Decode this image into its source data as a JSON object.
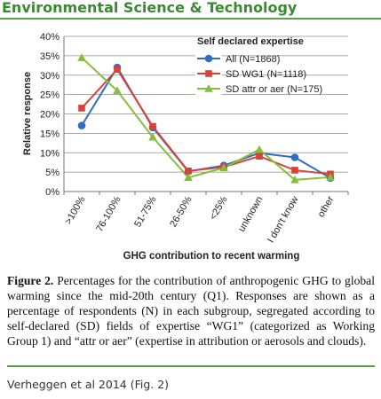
{
  "header": {
    "title": "Environmental Science & Technology"
  },
  "chart_data": {
    "type": "line",
    "ylabel": "Relative response",
    "xlabel": "GHG contribution to recent warming",
    "legend_title": "Self declared expertise",
    "legend_position": "top-right",
    "categories": [
      ">100%",
      "76-100%",
      "51-75%",
      "26-50%",
      "<25%",
      "unknown",
      "I don't know",
      "other"
    ],
    "yticks": [
      "0%",
      "5%",
      "10%",
      "15%",
      "20%",
      "25%",
      "30%",
      "35%",
      "40%"
    ],
    "ylim": [
      0,
      40
    ],
    "grid": true,
    "series": [
      {
        "name": "All (N=1868)",
        "color": "#2e6fc4",
        "marker": "circle",
        "values": [
          17,
          32,
          16.5,
          5.2,
          6.7,
          9.9,
          8.8,
          3.5
        ]
      },
      {
        "name": "SD WG1 (N=1118)",
        "color": "#d9413a",
        "marker": "square",
        "values": [
          21.5,
          31.5,
          16.8,
          5.3,
          6.3,
          9.1,
          5.5,
          4.5
        ]
      },
      {
        "name": "SD attr or aer (N=175)",
        "color": "#86bd3c",
        "marker": "triangle",
        "values": [
          34.5,
          26,
          14,
          3.6,
          6.1,
          10.8,
          3,
          3.7
        ]
      }
    ]
  },
  "caption": {
    "label": "Figure 2.",
    "text": " Percentages for the contribution of anthropogenic GHG to global warming since the mid-20th century (Q1). Responses are shown as a percentage of respondents (N) in each subgroup, segregated according to self-declared (SD) fields of expertise “WG1” (categorized as Working Group 1) and “attr or aer” (expertise in attribution or aerosols and clouds)."
  },
  "footer": {
    "citation": "Verheggen et al 2014 (Fig. 2)"
  }
}
